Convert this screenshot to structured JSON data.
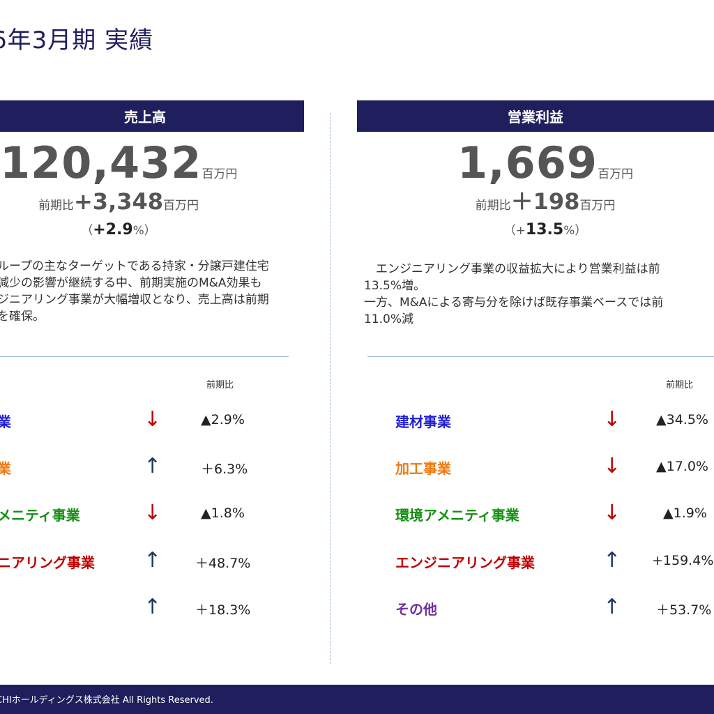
{
  "page": {
    "title": "6年3月期 実績"
  },
  "sales": {
    "header": "売上高",
    "value": "120,432",
    "unit": "百万円",
    "delta_prefix": "前期比",
    "delta_value": "+3,348",
    "delta_unit": "百万円",
    "pct_open": "（",
    "pct_value": "+2.9",
    "pct_close": "%）",
    "desc_lines": [
      "ループの主なターゲットである持家・分譲戸建住宅",
      "減少の影響が継続する中、前期実施のM&A効果も",
      "ジニアリング事業が大幅増収となり、売上高は前期",
      "を確保。"
    ],
    "col_head": "前期比",
    "segments": [
      {
        "name": "業",
        "color": "#1f1fd6",
        "arrow": "↓",
        "dir": "down",
        "value": "▲2.9%"
      },
      {
        "name": "業",
        "color": "#ee7a12",
        "arrow": "↑",
        "dir": "up",
        "value": "＋6.3%"
      },
      {
        "name": "メニティ事業",
        "color": "#129012",
        "arrow": "↓",
        "dir": "down",
        "value": "▲1.8%"
      },
      {
        "name": "ニアリング事業",
        "color": "#c00000",
        "arrow": "↑",
        "dir": "up",
        "value": "＋48.7%"
      },
      {
        "name": "",
        "color": "#7030a0",
        "arrow": "↑",
        "dir": "up",
        "value": "＋18.3%"
      }
    ]
  },
  "profit": {
    "header": "営業利益",
    "value": "1,669",
    "unit": "百万円",
    "delta_prefix": "前期比",
    "delta_value": "＋198",
    "delta_unit": "百万円",
    "pct_open": "（+",
    "pct_value": "13.5",
    "pct_close": "%）",
    "desc_lines": [
      "　エンジニアリング事業の収益拡大により営業利益は前",
      "13.5%増。",
      "一方、M&Aによる寄与分を除けば既存事業ベースでは前",
      "11.0%減"
    ],
    "col_head": "前期比",
    "segments": [
      {
        "name": "建材事業",
        "color": "#1f1fd6",
        "arrow": "↓",
        "dir": "down",
        "value": "▲34.5%"
      },
      {
        "name": "加工事業",
        "color": "#ee7a12",
        "arrow": "↓",
        "dir": "down",
        "value": "▲17.0%"
      },
      {
        "name": "環境アメニティ事業",
        "color": "#129012",
        "arrow": "↓",
        "dir": "down",
        "value": "▲1.9%"
      },
      {
        "name": "エンジニアリング事業",
        "color": "#c00000",
        "arrow": "↑",
        "dir": "up",
        "value": "+159.4%"
      },
      {
        "name": "その他",
        "color": "#7030a0",
        "arrow": "↑",
        "dir": "up",
        "value": "＋53.7%"
      }
    ]
  },
  "footer": {
    "text": "CHIホールディングス株式会社 All Rights Reserved."
  }
}
